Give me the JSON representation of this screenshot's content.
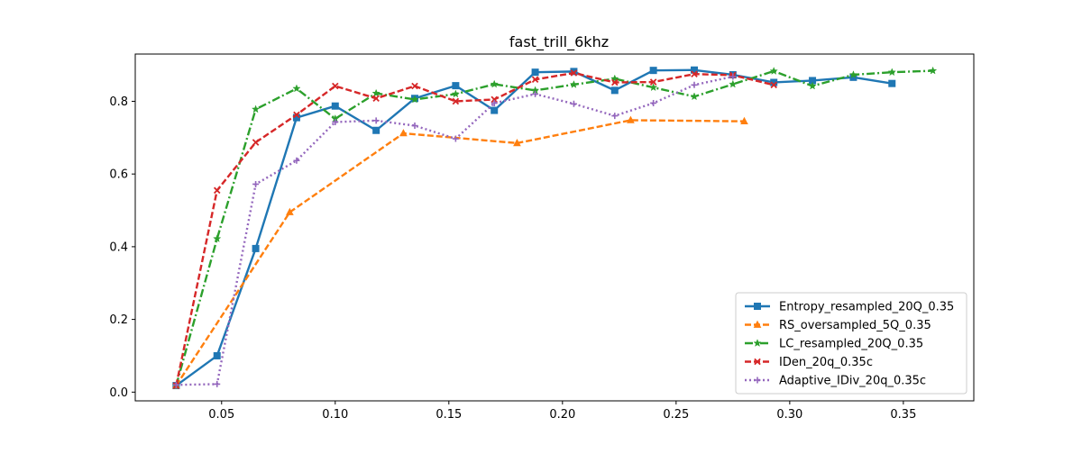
{
  "chart_data": {
    "type": "line",
    "title": "fast_trill_6khz",
    "xlabel": "",
    "ylabel": "",
    "xlim": [
      0.012,
      0.381
    ],
    "ylim": [
      -0.024,
      0.93
    ],
    "x_ticks": [
      0.05,
      0.1,
      0.15,
      0.2,
      0.25,
      0.3,
      0.35
    ],
    "x_tick_labels": [
      "0.05",
      "0.10",
      "0.15",
      "0.20",
      "0.25",
      "0.30",
      "0.35"
    ],
    "y_ticks": [
      0.0,
      0.2,
      0.4,
      0.6,
      0.8
    ],
    "y_tick_labels": [
      "0.0",
      "0.2",
      "0.4",
      "0.6",
      "0.8"
    ],
    "grid": false,
    "legend_position": "lower-right",
    "series": [
      {
        "name": "Entropy_resampled_20Q_0.35",
        "color": "#1f77b4",
        "dash": "solid",
        "marker": "square",
        "x": [
          0.03,
          0.048,
          0.065,
          0.083,
          0.1,
          0.118,
          0.135,
          0.153,
          0.17,
          0.188,
          0.205,
          0.223,
          0.24,
          0.258,
          0.275,
          0.293,
          0.31,
          0.328,
          0.345
        ],
        "y": [
          0.018,
          0.1,
          0.395,
          0.755,
          0.787,
          0.72,
          0.808,
          0.843,
          0.775,
          0.88,
          0.882,
          0.83,
          0.885,
          0.886,
          0.873,
          0.852,
          0.857,
          0.866,
          0.849
        ]
      },
      {
        "name": "RS_oversampled_5Q_0.35",
        "color": "#ff7f0e",
        "dash": "dashed",
        "marker": "triangle",
        "x": [
          0.03,
          0.08,
          0.13,
          0.18,
          0.23,
          0.28
        ],
        "y": [
          0.018,
          0.495,
          0.712,
          0.685,
          0.748,
          0.745
        ]
      },
      {
        "name": "LC_resampled_20Q_0.35",
        "color": "#2ca02c",
        "dash": "dashdot",
        "marker": "star",
        "x": [
          0.03,
          0.048,
          0.065,
          0.083,
          0.1,
          0.118,
          0.135,
          0.153,
          0.17,
          0.188,
          0.205,
          0.223,
          0.24,
          0.258,
          0.275,
          0.293,
          0.31,
          0.328,
          0.345,
          0.363
        ],
        "y": [
          0.018,
          0.422,
          0.778,
          0.835,
          0.752,
          0.822,
          0.805,
          0.82,
          0.847,
          0.83,
          0.846,
          0.862,
          0.838,
          0.813,
          0.847,
          0.883,
          0.842,
          0.873,
          0.88,
          0.884
        ]
      },
      {
        "name": "IDen_20q_0.35c",
        "color": "#d62728",
        "dash": "dashed",
        "marker": "x",
        "x": [
          0.03,
          0.048,
          0.065,
          0.083,
          0.1,
          0.118,
          0.135,
          0.153,
          0.17,
          0.188,
          0.205,
          0.223,
          0.24,
          0.258,
          0.275,
          0.293
        ],
        "y": [
          0.018,
          0.555,
          0.687,
          0.763,
          0.842,
          0.808,
          0.842,
          0.8,
          0.805,
          0.86,
          0.878,
          0.852,
          0.853,
          0.875,
          0.872,
          0.845
        ]
      },
      {
        "name": "Adaptive_IDiv_20q_0.35c",
        "color": "#9467bd",
        "dash": "dotted",
        "marker": "plus",
        "x": [
          0.03,
          0.048,
          0.065,
          0.083,
          0.1,
          0.118,
          0.135,
          0.153,
          0.17,
          0.188,
          0.205,
          0.223,
          0.24,
          0.258,
          0.275
        ],
        "y": [
          0.02,
          0.022,
          0.572,
          0.637,
          0.743,
          0.747,
          0.733,
          0.697,
          0.795,
          0.82,
          0.793,
          0.76,
          0.795,
          0.845,
          0.868
        ]
      }
    ]
  }
}
